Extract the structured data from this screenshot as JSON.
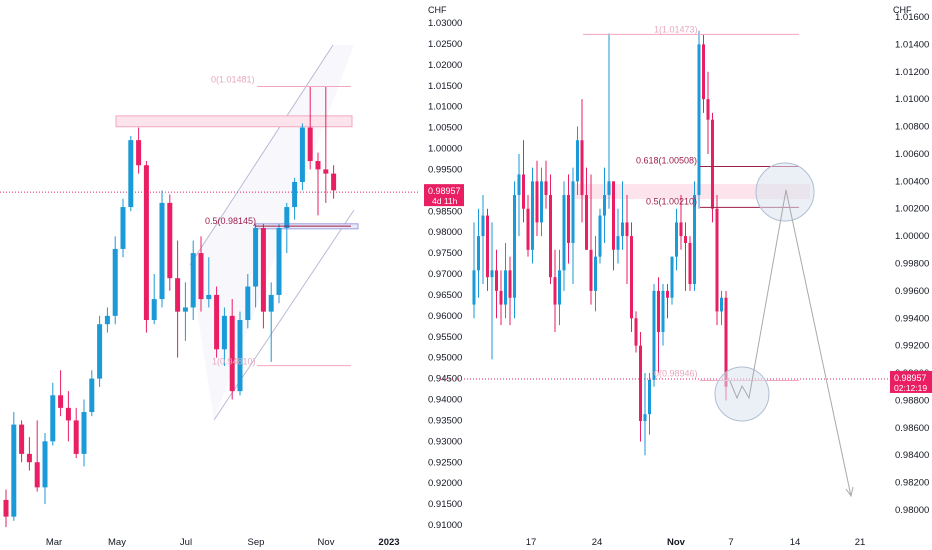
{
  "colors": {
    "up": "#1a9ad6",
    "down": "#e91e63",
    "fib_line": "#9c1e4a",
    "zone_fill": "#fde4ec",
    "zone_stroke": "#f2a7bf",
    "price_badge": "#e91e63",
    "channel": "#b9b9d8",
    "circle_fill": "#dbe4ef",
    "circle_stroke": "#b0bfd3",
    "path_line": "#a9a9a9",
    "axis_text": "#131722"
  },
  "chart_data": [
    {
      "type": "candlestick",
      "panel": "left",
      "currency": "CHF",
      "ylim": [
        0.908,
        1.033
      ],
      "y_ticks": [
        "1.03000",
        "1.02500",
        "1.02000",
        "1.01500",
        "1.01000",
        "1.00500",
        "1.00000",
        "0.99500",
        "0.99000",
        "0.98500",
        "0.98000",
        "0.97500",
        "0.97000",
        "0.96500",
        "0.96000",
        "0.95500",
        "0.95000",
        "0.94500",
        "0.94000",
        "0.93500",
        "0.93000",
        "0.92500",
        "0.92000",
        "0.91500",
        "0.91000"
      ],
      "x_ticks": [
        "Mar",
        "May",
        "Jul",
        "Sep",
        "Nov",
        "2023"
      ],
      "current_price": {
        "value": "0.98957",
        "countdown": "4d 11h"
      },
      "fib_labels": [
        {
          "text": "0(1.01481)",
          "level": 1.01481
        },
        {
          "text": "0.5(0.98145)",
          "level": 0.98145
        },
        {
          "text": "1(0.94810)",
          "level": 0.9481
        }
      ],
      "supply_zone": [
        1.0052,
        1.0078
      ],
      "small_zone": [
        0.9808,
        0.982
      ],
      "candles": [
        {
          "o": 0.916,
          "h": 0.9185,
          "l": 0.9095,
          "c": 0.912
        },
        {
          "o": 0.912,
          "h": 0.937,
          "l": 0.911,
          "c": 0.934
        },
        {
          "o": 0.934,
          "h": 0.935,
          "l": 0.925,
          "c": 0.927
        },
        {
          "o": 0.927,
          "h": 0.931,
          "l": 0.923,
          "c": 0.925
        },
        {
          "o": 0.925,
          "h": 0.935,
          "l": 0.918,
          "c": 0.919
        },
        {
          "o": 0.919,
          "h": 0.932,
          "l": 0.915,
          "c": 0.93
        },
        {
          "o": 0.93,
          "h": 0.944,
          "l": 0.929,
          "c": 0.941
        },
        {
          "o": 0.941,
          "h": 0.947,
          "l": 0.936,
          "c": 0.938
        },
        {
          "o": 0.938,
          "h": 0.942,
          "l": 0.93,
          "c": 0.935
        },
        {
          "o": 0.935,
          "h": 0.938,
          "l": 0.926,
          "c": 0.927
        },
        {
          "o": 0.927,
          "h": 0.94,
          "l": 0.924,
          "c": 0.937
        },
        {
          "o": 0.937,
          "h": 0.947,
          "l": 0.936,
          "c": 0.945
        },
        {
          "o": 0.945,
          "h": 0.96,
          "l": 0.943,
          "c": 0.958
        },
        {
          "o": 0.958,
          "h": 0.962,
          "l": 0.956,
          "c": 0.96
        },
        {
          "o": 0.96,
          "h": 0.979,
          "l": 0.958,
          "c": 0.976
        },
        {
          "o": 0.976,
          "h": 0.988,
          "l": 0.974,
          "c": 0.986
        },
        {
          "o": 0.986,
          "h": 1.003,
          "l": 0.985,
          "c": 1.002
        },
        {
          "o": 1.002,
          "h": 1.005,
          "l": 0.994,
          "c": 0.996
        },
        {
          "o": 0.996,
          "h": 0.997,
          "l": 0.956,
          "c": 0.959
        },
        {
          "o": 0.959,
          "h": 0.97,
          "l": 0.958,
          "c": 0.964
        },
        {
          "o": 0.964,
          "h": 0.99,
          "l": 0.962,
          "c": 0.987
        },
        {
          "o": 0.987,
          "h": 0.989,
          "l": 0.966,
          "c": 0.969
        },
        {
          "o": 0.969,
          "h": 0.978,
          "l": 0.95,
          "c": 0.961
        },
        {
          "o": 0.961,
          "h": 0.968,
          "l": 0.954,
          "c": 0.962
        },
        {
          "o": 0.962,
          "h": 0.978,
          "l": 0.959,
          "c": 0.975
        },
        {
          "o": 0.975,
          "h": 0.979,
          "l": 0.961,
          "c": 0.964
        },
        {
          "o": 0.964,
          "h": 0.974,
          "l": 0.962,
          "c": 0.965
        },
        {
          "o": 0.965,
          "h": 0.967,
          "l": 0.95,
          "c": 0.952
        },
        {
          "o": 0.952,
          "h": 0.962,
          "l": 0.948,
          "c": 0.96
        },
        {
          "o": 0.96,
          "h": 0.964,
          "l": 0.94,
          "c": 0.942
        },
        {
          "o": 0.942,
          "h": 0.961,
          "l": 0.941,
          "c": 0.959
        },
        {
          "o": 0.959,
          "h": 0.97,
          "l": 0.957,
          "c": 0.967
        },
        {
          "o": 0.967,
          "h": 0.982,
          "l": 0.962,
          "c": 0.981
        },
        {
          "o": 0.981,
          "h": 0.982,
          "l": 0.957,
          "c": 0.961
        },
        {
          "o": 0.961,
          "h": 0.968,
          "l": 0.949,
          "c": 0.965
        },
        {
          "o": 0.965,
          "h": 0.982,
          "l": 0.963,
          "c": 0.981
        },
        {
          "o": 0.981,
          "h": 0.987,
          "l": 0.975,
          "c": 0.986
        },
        {
          "o": 0.986,
          "h": 0.993,
          "l": 0.983,
          "c": 0.992
        },
        {
          "o": 0.992,
          "h": 1.006,
          "l": 0.99,
          "c": 1.005
        },
        {
          "o": 1.005,
          "h": 1.0148,
          "l": 0.995,
          "c": 0.997
        },
        {
          "o": 0.997,
          "h": 0.999,
          "l": 0.984,
          "c": 0.995
        },
        {
          "o": 0.995,
          "h": 1.0148,
          "l": 0.987,
          "c": 0.994
        },
        {
          "o": 0.994,
          "h": 0.996,
          "l": 0.988,
          "c": 0.99
        }
      ]
    },
    {
      "type": "candlestick",
      "panel": "right",
      "currency": "CHF",
      "ylim": [
        0.9784,
        1.0164
      ],
      "y_ticks": [
        "1.01600",
        "1.01400",
        "1.01200",
        "1.01000",
        "1.00800",
        "1.00600",
        "1.00400",
        "1.00200",
        "1.00000",
        "0.99800",
        "0.99600",
        "0.99400",
        "0.99200",
        "0.99000",
        "0.98800",
        "0.98600",
        "0.98400",
        "0.98200",
        "0.98000"
      ],
      "x_ticks": [
        "17",
        "24",
        "Nov",
        "7",
        "14",
        "21"
      ],
      "current_price": {
        "value": "0.98957",
        "countdown": "02:12:19"
      },
      "fib_labels": [
        {
          "text": "1(1.01473)",
          "level": 1.01473
        },
        {
          "text": "0.618(1.00508)",
          "level": 1.00508
        },
        {
          "text": "0.5(1.00210)",
          "level": 1.0021
        },
        {
          "text": "0(0.98946)",
          "level": 0.98946
        }
      ],
      "supply_zone": [
        1.0027,
        1.0038
      ],
      "candles": [
        {
          "o": 0.995,
          "h": 1.001,
          "l": 0.994,
          "c": 0.9975
        },
        {
          "o": 0.9975,
          "h": 1.002,
          "l": 0.9955,
          "c": 1.0
        },
        {
          "o": 1.0,
          "h": 1.003,
          "l": 0.9965,
          "c": 1.0015
        },
        {
          "o": 1.0015,
          "h": 1.002,
          "l": 0.996,
          "c": 0.997
        },
        {
          "o": 0.997,
          "h": 1.001,
          "l": 0.991,
          "c": 0.9975
        },
        {
          "o": 0.9975,
          "h": 0.999,
          "l": 0.994,
          "c": 0.996
        },
        {
          "o": 0.996,
          "h": 0.9975,
          "l": 0.9935,
          "c": 0.995
        },
        {
          "o": 0.995,
          "h": 0.9995,
          "l": 0.994,
          "c": 0.9975
        },
        {
          "o": 0.9975,
          "h": 0.9985,
          "l": 0.9935,
          "c": 0.9955
        },
        {
          "o": 0.9955,
          "h": 1.004,
          "l": 0.994,
          "c": 1.003
        },
        {
          "o": 1.003,
          "h": 1.006,
          "l": 1.0,
          "c": 1.0045
        },
        {
          "o": 1.0045,
          "h": 1.007,
          "l": 1.001,
          "c": 1.002
        },
        {
          "o": 1.002,
          "h": 1.003,
          "l": 0.9985,
          "c": 0.999
        },
        {
          "o": 0.999,
          "h": 1.005,
          "l": 0.998,
          "c": 1.004
        },
        {
          "o": 1.004,
          "h": 1.0055,
          "l": 1.0,
          "c": 1.001
        },
        {
          "o": 1.001,
          "h": 1.005,
          "l": 1.0,
          "c": 1.004
        },
        {
          "o": 1.004,
          "h": 1.0055,
          "l": 1.002,
          "c": 1.003
        },
        {
          "o": 1.003,
          "h": 1.0045,
          "l": 0.9965,
          "c": 0.997
        },
        {
          "o": 0.997,
          "h": 0.999,
          "l": 0.993,
          "c": 0.995
        },
        {
          "o": 0.995,
          "h": 0.999,
          "l": 0.9935,
          "c": 0.9975
        },
        {
          "o": 0.9975,
          "h": 1.004,
          "l": 0.996,
          "c": 1.003
        },
        {
          "o": 1.003,
          "h": 1.0045,
          "l": 0.998,
          "c": 0.9995
        },
        {
          "o": 0.9995,
          "h": 1.005,
          "l": 0.9965,
          "c": 1.004
        },
        {
          "o": 1.004,
          "h": 1.008,
          "l": 1.003,
          "c": 1.007
        },
        {
          "o": 1.007,
          "h": 1.01,
          "l": 1.001,
          "c": 1.003
        },
        {
          "o": 1.003,
          "h": 1.005,
          "l": 0.999,
          "c": 0.999
        },
        {
          "o": 0.999,
          "h": 1.0045,
          "l": 0.995,
          "c": 0.996
        },
        {
          "o": 0.996,
          "h": 1.0,
          "l": 0.9945,
          "c": 0.9985
        },
        {
          "o": 0.9985,
          "h": 1.002,
          "l": 0.998,
          "c": 1.0015
        },
        {
          "o": 1.0015,
          "h": 1.005,
          "l": 0.9995,
          "c": 1.003
        },
        {
          "o": 1.003,
          "h": 1.0148,
          "l": 1.002,
          "c": 1.004
        },
        {
          "o": 1.004,
          "h": 1.004,
          "l": 0.9975,
          "c": 0.999
        },
        {
          "o": 0.999,
          "h": 1.002,
          "l": 0.998,
          "c": 1.0
        },
        {
          "o": 1.0,
          "h": 1.004,
          "l": 0.999,
          "c": 1.001
        },
        {
          "o": 1.001,
          "h": 1.003,
          "l": 0.9965,
          "c": 1.0
        },
        {
          "o": 1.0,
          "h": 1.001,
          "l": 0.993,
          "c": 0.994
        },
        {
          "o": 0.994,
          "h": 0.9945,
          "l": 0.9915,
          "c": 0.992
        },
        {
          "o": 0.992,
          "h": 0.993,
          "l": 0.985,
          "c": 0.9865
        },
        {
          "o": 0.9865,
          "h": 0.99,
          "l": 0.984,
          "c": 0.987
        },
        {
          "o": 0.987,
          "h": 0.99,
          "l": 0.9855,
          "c": 0.9895
        },
        {
          "o": 0.9895,
          "h": 0.9965,
          "l": 0.989,
          "c": 0.996
        },
        {
          "o": 0.996,
          "h": 0.997,
          "l": 0.99,
          "c": 0.993
        },
        {
          "o": 0.993,
          "h": 0.9965,
          "l": 0.992,
          "c": 0.996
        },
        {
          "o": 0.996,
          "h": 0.9965,
          "l": 0.994,
          "c": 0.9955
        },
        {
          "o": 0.9955,
          "h": 0.9985,
          "l": 0.995,
          "c": 0.9985
        },
        {
          "o": 0.9985,
          "h": 1.002,
          "l": 0.9975,
          "c": 1.001
        },
        {
          "o": 1.001,
          "h": 1.003,
          "l": 0.999,
          "c": 1.0
        },
        {
          "o": 1.0,
          "h": 1.001,
          "l": 0.996,
          "c": 0.9995
        },
        {
          "o": 0.9995,
          "h": 1.0,
          "l": 0.996,
          "c": 0.9965
        },
        {
          "o": 0.9965,
          "h": 1.004,
          "l": 0.996,
          "c": 1.003
        },
        {
          "o": 1.003,
          "h": 1.015,
          "l": 1.002,
          "c": 1.014
        },
        {
          "o": 1.014,
          "h": 1.0147,
          "l": 1.009,
          "c": 1.01
        },
        {
          "o": 1.01,
          "h": 1.012,
          "l": 1.006,
          "c": 1.0085
        },
        {
          "o": 1.0085,
          "h": 1.009,
          "l": 1.001,
          "c": 1.002
        },
        {
          "o": 1.002,
          "h": 1.003,
          "l": 0.9935,
          "c": 0.9945
        },
        {
          "o": 0.9945,
          "h": 0.996,
          "l": 0.9935,
          "c": 0.9955
        },
        {
          "o": 0.9955,
          "h": 0.996,
          "l": 0.988,
          "c": 0.989
        }
      ]
    }
  ]
}
